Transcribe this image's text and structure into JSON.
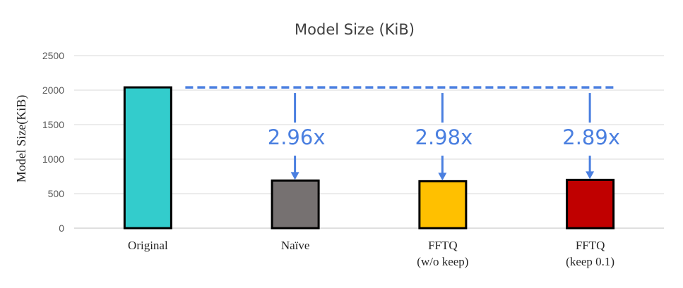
{
  "chart_data": {
    "type": "bar",
    "title": "Model Size (KiB)",
    "xlabel": "",
    "ylabel": "Model Size(KiB)",
    "categories": [
      [
        "Original"
      ],
      [
        "Naïve"
      ],
      [
        "FFTQ",
        "(w/o keep)"
      ],
      [
        "FFTQ",
        "(keep 0.1)"
      ]
    ],
    "values": [
      2040,
      690,
      680,
      700
    ],
    "ylim": [
      0,
      2500
    ],
    "yticks": [
      0,
      500,
      1000,
      1500,
      2000,
      2500
    ],
    "grid": true,
    "bar_colors": [
      "#33CCCC",
      "#767171",
      "#FFC000",
      "#C00000"
    ],
    "bar_edge_color": "#000000",
    "annotations": {
      "reference_line": {
        "from_category": 0,
        "to_category": 3,
        "style": "dashed",
        "color": "#4A7FE0"
      },
      "arrows": [
        {
          "target_category": 1,
          "label": "2.96x"
        },
        {
          "target_category": 2,
          "label": "2.98x"
        },
        {
          "target_category": 3,
          "label": "2.89x"
        }
      ]
    }
  }
}
